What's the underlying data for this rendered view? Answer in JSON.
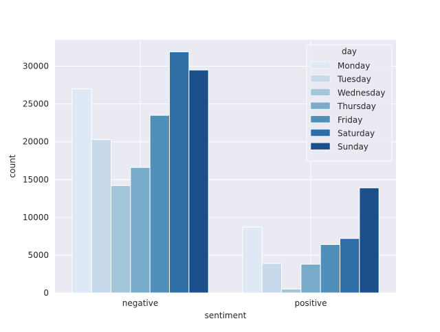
{
  "chart_data": {
    "type": "bar",
    "title": "",
    "xlabel": "sentiment",
    "ylabel": "count",
    "categories": [
      "negative",
      "positive"
    ],
    "ylim": [
      0,
      33500
    ],
    "yticks": [
      0,
      5000,
      10000,
      15000,
      20000,
      25000,
      30000
    ],
    "grid": true,
    "legend": {
      "title": "day",
      "position": "top-right"
    },
    "series": [
      {
        "name": "Monday",
        "color": "#dfe9f5",
        "values": [
          27000,
          8700
        ]
      },
      {
        "name": "Tuesday",
        "color": "#c7d9ea",
        "values": [
          20300,
          3900
        ]
      },
      {
        "name": "Wednesday",
        "color": "#a3c6da",
        "values": [
          14200,
          500
        ]
      },
      {
        "name": "Thursday",
        "color": "#79abca",
        "values": [
          16600,
          3800
        ]
      },
      {
        "name": "Friday",
        "color": "#4f8fba",
        "values": [
          23500,
          6400
        ]
      },
      {
        "name": "Saturday",
        "color": "#2f6fa8",
        "values": [
          31900,
          7200
        ]
      },
      {
        "name": "Sunday",
        "color": "#1a4f8c",
        "values": [
          29500,
          13900
        ]
      }
    ]
  }
}
